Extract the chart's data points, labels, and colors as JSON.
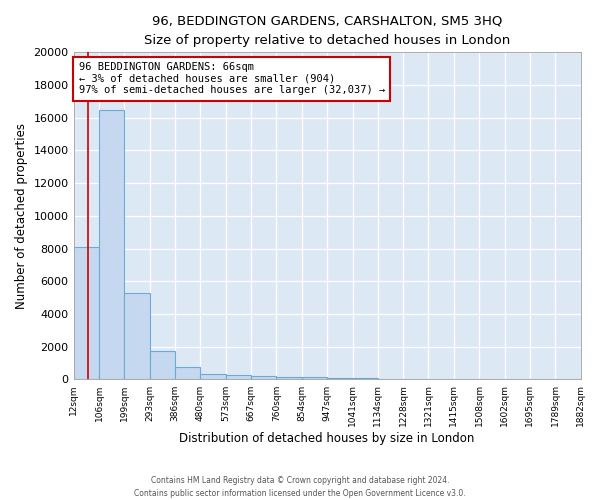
{
  "title": "96, BEDDINGTON GARDENS, CARSHALTON, SM5 3HQ",
  "subtitle": "Size of property relative to detached houses in London",
  "xlabel": "Distribution of detached houses by size in London",
  "ylabel": "Number of detached properties",
  "bin_edges": [
    12,
    106,
    199,
    293,
    386,
    480,
    573,
    667,
    760,
    854,
    947,
    1041,
    1134,
    1228,
    1321,
    1415,
    1508,
    1602,
    1695,
    1789,
    1882
  ],
  "bar_heights": [
    8100,
    16500,
    5300,
    1750,
    750,
    350,
    250,
    200,
    175,
    120,
    90,
    70,
    55,
    45,
    35,
    28,
    22,
    18,
    14,
    10
  ],
  "bar_color": "#c5d8f0",
  "bar_edge_color": "#6aaad4",
  "background_color": "#dde8f5",
  "grid_color": "#ffffff",
  "red_line_x": 66,
  "annotation_text": "96 BEDDINGTON GARDENS: 66sqm\n← 3% of detached houses are smaller (904)\n97% of semi-detached houses are larger (32,037) →",
  "annotation_box_color": "#ffffff",
  "annotation_border_color": "#cc0000",
  "ylim": [
    0,
    20000
  ],
  "yticks": [
    0,
    2000,
    4000,
    6000,
    8000,
    10000,
    12000,
    14000,
    16000,
    18000,
    20000
  ],
  "fig_bg_color": "#ffffff",
  "footer_line1": "Contains HM Land Registry data © Crown copyright and database right 2024.",
  "footer_line2": "Contains public sector information licensed under the Open Government Licence v3.0."
}
